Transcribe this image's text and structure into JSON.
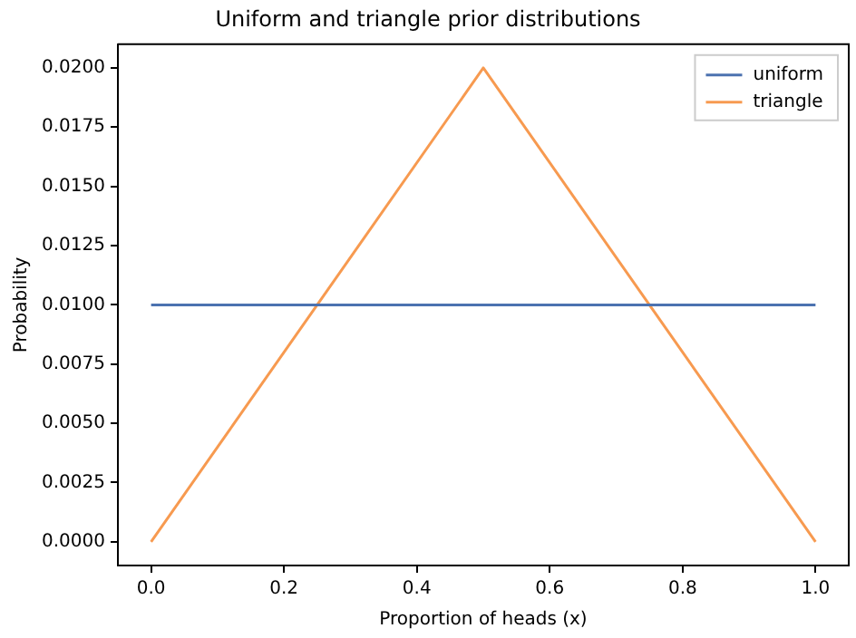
{
  "chart_data": {
    "type": "line",
    "title": "Uniform and triangle prior distributions",
    "xlabel": "Proportion of heads (x)",
    "ylabel": "Probability",
    "series": [
      {
        "name": "uniform",
        "color": "#4c72b0",
        "x": [
          0,
          1
        ],
        "values": [
          0.01,
          0.01
        ]
      },
      {
        "name": "triangle",
        "color": "#f79a50",
        "x": [
          0,
          0.5,
          1
        ],
        "values": [
          0,
          0.02,
          0
        ]
      }
    ],
    "xlim": [
      -0.05,
      1.05
    ],
    "xticks": [
      {
        "value": 0,
        "label": "0.0"
      },
      {
        "value": 0.2,
        "label": "0.2"
      },
      {
        "value": 0.4,
        "label": "0.4"
      },
      {
        "value": 0.6,
        "label": "0.6"
      },
      {
        "value": 0.8,
        "label": "0.8"
      },
      {
        "value": 1,
        "label": "1.0"
      }
    ],
    "ylim": [
      -0.001,
      0.021
    ],
    "yticks": [
      {
        "value": 0,
        "label": "0.0000"
      },
      {
        "value": 0.0025,
        "label": "0.0025"
      },
      {
        "value": 0.005,
        "label": "0.0050"
      },
      {
        "value": 0.0075,
        "label": "0.0075"
      },
      {
        "value": 0.01,
        "label": "0.0100"
      },
      {
        "value": 0.0125,
        "label": "0.0125"
      },
      {
        "value": 0.015,
        "label": "0.0150"
      },
      {
        "value": 0.0175,
        "label": "0.0175"
      },
      {
        "value": 0.02,
        "label": "0.0200"
      }
    ],
    "grid": false,
    "legend": "top right",
    "marker": "none",
    "line_style": "solid"
  }
}
